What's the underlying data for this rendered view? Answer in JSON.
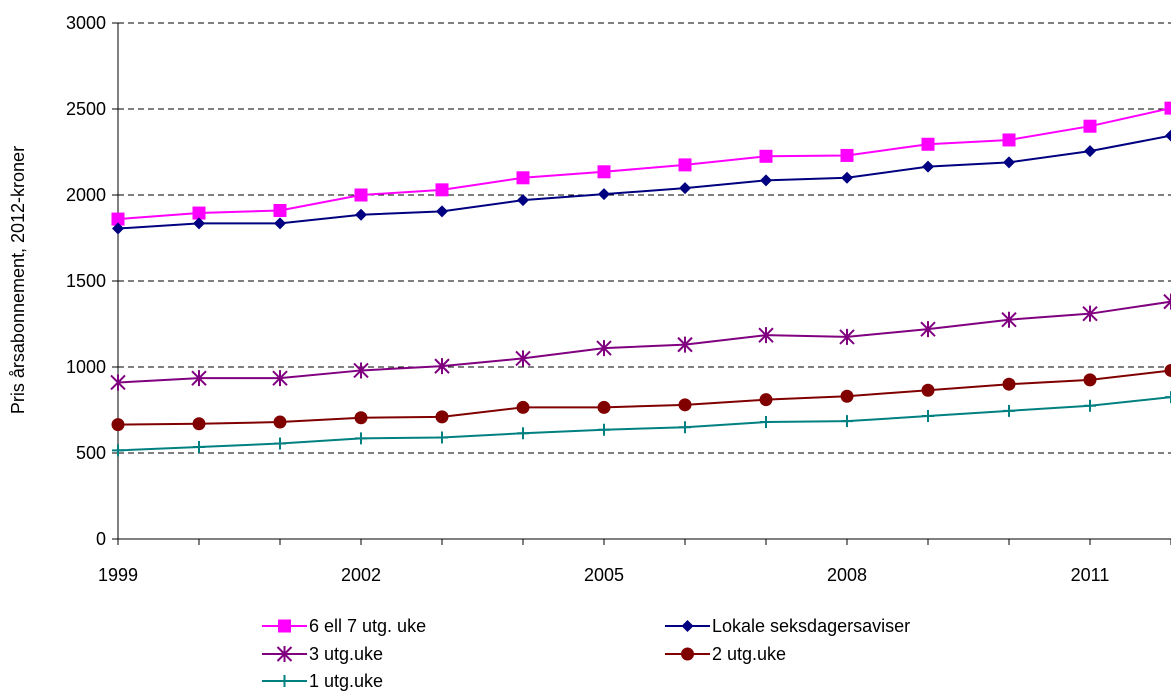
{
  "chart_data": {
    "type": "line",
    "title": "",
    "xlabel": "",
    "ylabel": "Pris årsabonnement, 2012-kroner",
    "x": [
      1999,
      2000,
      2001,
      2002,
      2003,
      2004,
      2005,
      2006,
      2007,
      2008,
      2009,
      2010,
      2011,
      2012
    ],
    "xticks": [
      "1999",
      "2002",
      "2005",
      "2008",
      "2011"
    ],
    "yticks": [
      "0",
      "500",
      "1000",
      "1500",
      "2000",
      "2500",
      "3000"
    ],
    "ylim": [
      0,
      3000
    ],
    "grid": "horizontal dashed",
    "legend_position": "bottom",
    "series": [
      {
        "name": "6 ell 7 utg. uke",
        "color": "#ff00ff",
        "marker": "square",
        "values": [
          1860,
          1895,
          1910,
          2000,
          2030,
          2100,
          2135,
          2175,
          2225,
          2230,
          2295,
          2320,
          2400,
          2505
        ]
      },
      {
        "name": "Lokale seksdagersaviser",
        "color": "#000080",
        "marker": "diamond",
        "values": [
          1805,
          1835,
          1835,
          1885,
          1905,
          1970,
          2005,
          2040,
          2085,
          2100,
          2165,
          2190,
          2255,
          2345
        ]
      },
      {
        "name": "3 utg.uke",
        "color": "#800080",
        "marker": "star",
        "values": [
          910,
          935,
          935,
          980,
          1005,
          1050,
          1110,
          1130,
          1185,
          1175,
          1220,
          1275,
          1310,
          1380
        ]
      },
      {
        "name": "2 utg.uke",
        "color": "#800000",
        "marker": "circle",
        "values": [
          665,
          670,
          680,
          705,
          710,
          765,
          765,
          780,
          810,
          830,
          865,
          900,
          925,
          980
        ]
      },
      {
        "name": "1 utg.uke",
        "color": "#008080",
        "marker": "plus",
        "values": [
          515,
          535,
          555,
          585,
          590,
          615,
          635,
          650,
          680,
          685,
          715,
          745,
          775,
          825
        ]
      }
    ]
  }
}
